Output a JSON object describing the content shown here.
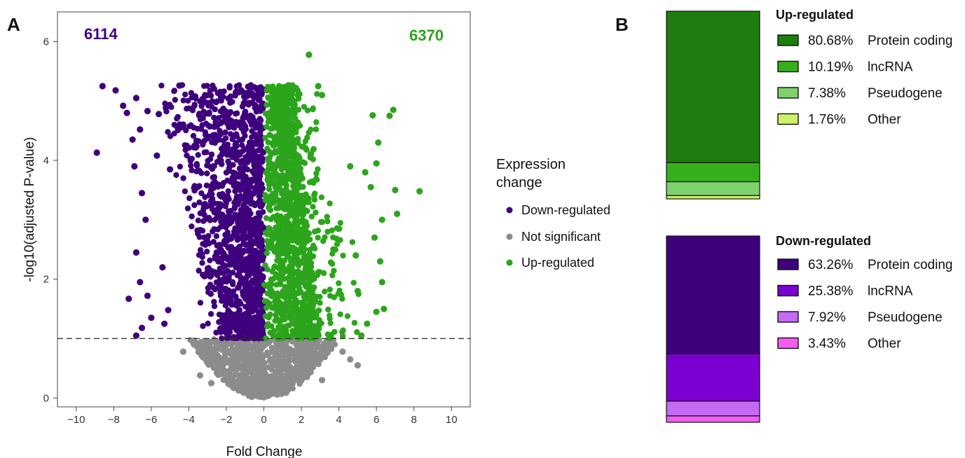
{
  "panels": {
    "a_label": "A",
    "b_label": "B"
  },
  "chart_data": [
    {
      "type": "scatter",
      "title": "",
      "xlabel": "Fold Change",
      "ylabel": "-log10(adjusted P-value)",
      "xlim": [
        -11,
        11
      ],
      "ylim": [
        -0.15,
        6.5
      ],
      "x_ticks": [
        -10,
        -8,
        -6,
        -4,
        -2,
        0,
        2,
        4,
        6,
        8,
        10
      ],
      "y_ticks": [
        0,
        2,
        4,
        6
      ],
      "grid": false,
      "threshold_line": {
        "y": 1.0,
        "style": "dashed"
      },
      "counts": {
        "down": "6114",
        "up": "6370"
      },
      "legend": {
        "title_line1": "Expression",
        "title_line2": "change",
        "placement": "right",
        "entries": [
          {
            "label": "Down-regulated",
            "color": "#3f007d"
          },
          {
            "label": "Not significant",
            "color": "#8c8c8c"
          },
          {
            "label": "Up-regulated",
            "color": "#2ca51c"
          }
        ]
      },
      "series": [
        {
          "name": "Down-regulated",
          "color": "#3f007d",
          "outliers": [
            [
              -8.6,
              5.25
            ],
            [
              -7.9,
              5.18
            ],
            [
              -8.9,
              4.13
            ],
            [
              -7.5,
              4.92
            ],
            [
              -7.3,
              4.8
            ],
            [
              -6.8,
              5.05
            ],
            [
              -6.2,
              4.83
            ],
            [
              -6.6,
              4.52
            ],
            [
              -7.0,
              4.35
            ],
            [
              -6.9,
              3.9
            ],
            [
              -6.5,
              3.45
            ],
            [
              -6.3,
              3.0
            ],
            [
              -6.8,
              2.45
            ],
            [
              -6.6,
              1.95
            ],
            [
              -7.2,
              1.67
            ],
            [
              -6.2,
              1.72
            ],
            [
              -6.0,
              1.35
            ],
            [
              -6.5,
              1.18
            ],
            [
              -6.8,
              1.05
            ],
            [
              -5.6,
              4.78
            ],
            [
              -4.5,
              5.26
            ],
            [
              -5.3,
              1.25
            ],
            [
              -5.1,
              1.48
            ],
            [
              -5.4,
              2.2
            ],
            [
              -5.0,
              3.85
            ],
            [
              -5.7,
              4.08
            ]
          ]
        },
        {
          "name": "Not significant",
          "color": "#8c8c8c",
          "outliers": [
            [
              -4.3,
              0.78
            ],
            [
              -3.4,
              0.38
            ],
            [
              4.2,
              0.78
            ],
            [
              5.0,
              0.55
            ],
            [
              4.6,
              0.65
            ],
            [
              3.1,
              0.3
            ],
            [
              -2.8,
              0.25
            ]
          ]
        },
        {
          "name": "Up-regulated",
          "color": "#2ca51c",
          "outliers": [
            [
              2.4,
              5.78
            ],
            [
              2.9,
              5.25
            ],
            [
              3.1,
              5.1
            ],
            [
              6.9,
              4.85
            ],
            [
              6.7,
              4.75
            ],
            [
              5.8,
              4.76
            ],
            [
              6.1,
              4.3
            ],
            [
              7.0,
              3.5
            ],
            [
              8.3,
              3.48
            ],
            [
              7.1,
              3.1
            ],
            [
              6.0,
              3.95
            ],
            [
              5.7,
              3.55
            ],
            [
              5.4,
              3.8
            ],
            [
              6.3,
              3.0
            ],
            [
              5.9,
              2.7
            ],
            [
              6.4,
              1.5
            ],
            [
              6.0,
              1.45
            ],
            [
              5.2,
              1.05
            ],
            [
              5.5,
              1.25
            ],
            [
              6.2,
              2.3
            ],
            [
              6.3,
              1.95
            ],
            [
              4.9,
              2.4
            ],
            [
              5.0,
              1.8
            ],
            [
              4.6,
              3.9
            ]
          ]
        }
      ]
    },
    {
      "type": "bar",
      "subtype": "stacked-100",
      "title": "",
      "groups": [
        {
          "name": "Up-regulated",
          "segments": [
            {
              "label": "Protein coding",
              "percent_text": "80.68%",
              "value": 80.68,
              "color": "#1e7d0f"
            },
            {
              "label": "lncRNA",
              "percent_text": "10.19%",
              "value": 10.19,
              "color": "#35b01a"
            },
            {
              "label": "Pseudogene",
              "percent_text": "7.38%",
              "value": 7.38,
              "color": "#7ed16d"
            },
            {
              "label": "Other",
              "percent_text": "1.76%",
              "value": 1.76,
              "color": "#ccf26a"
            }
          ]
        },
        {
          "name": "Down-regulated",
          "segments": [
            {
              "label": "Protein coding",
              "percent_text": "63.26%",
              "value": 63.26,
              "color": "#3f007d"
            },
            {
              "label": "lncRNA",
              "percent_text": "25.38%",
              "value": 25.38,
              "color": "#7a00d1"
            },
            {
              "label": "Pseudogene",
              "percent_text": "7.92%",
              "value": 7.92,
              "color": "#c46af5"
            },
            {
              "label": "Other",
              "percent_text": "3.43%",
              "value": 3.43,
              "color": "#f25df2"
            }
          ]
        }
      ]
    }
  ]
}
